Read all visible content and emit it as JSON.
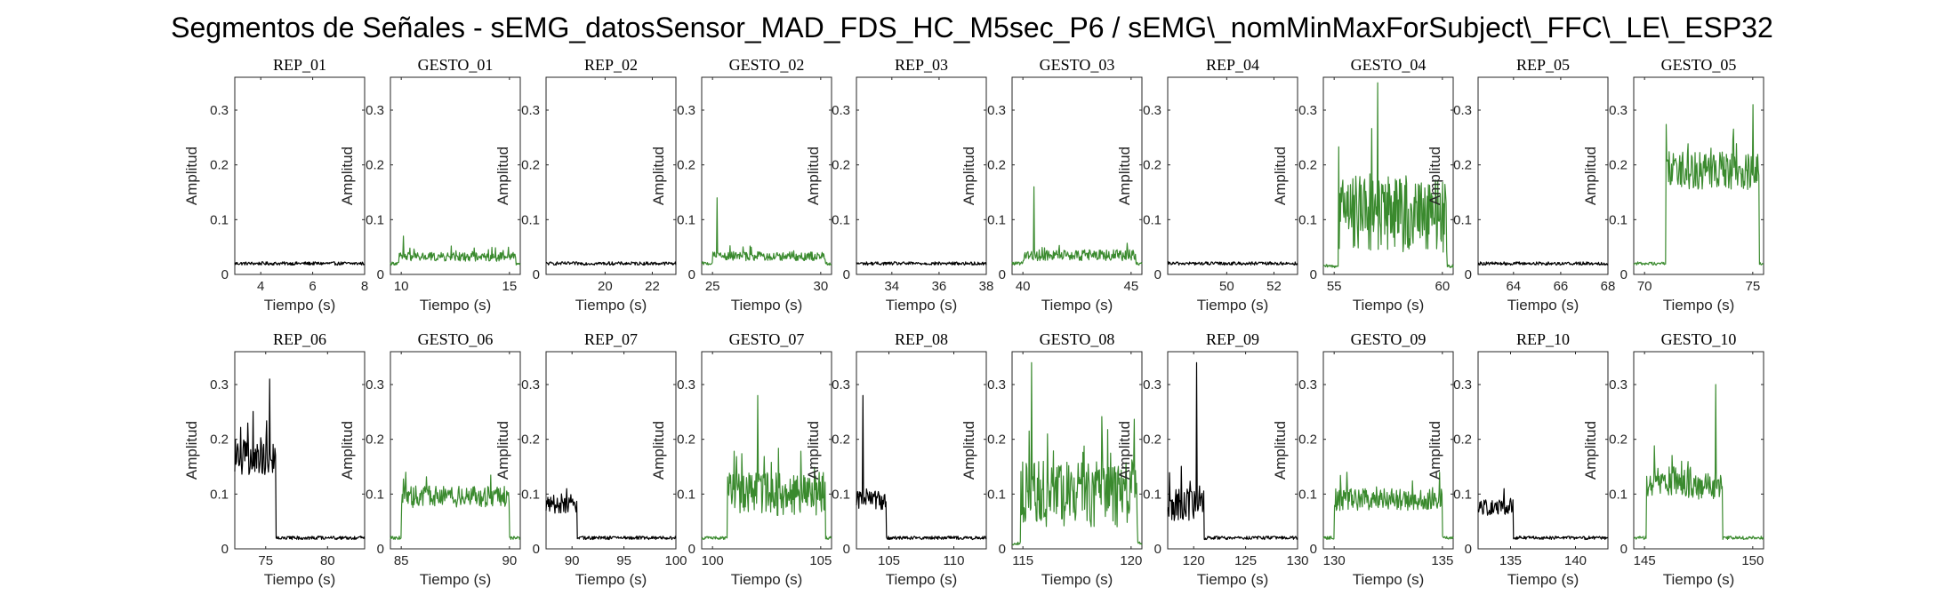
{
  "figure_title": "Segmentos de Señales - sEMG_datosSensor_MAD_FDS_HC_M5sec_P6 / sEMG\\_nomMinMaxForSubject\\_FFC\\_LE\\_ESP32",
  "colors": {
    "rep": "#000000",
    "gesto": "#3a8a2e"
  },
  "chart_data": [
    {
      "type": "line",
      "title": "REP_01",
      "xlabel": "Tiempo (s)",
      "ylabel": "Amplitud",
      "xlim": [
        3,
        8
      ],
      "ylim": [
        0,
        0.36
      ],
      "xticks": [
        4,
        6,
        8
      ],
      "yticks": [
        0,
        0.1,
        0.2,
        0.3
      ],
      "color": "rep",
      "x": [
        3,
        8
      ],
      "y": [
        0.02,
        0.02
      ],
      "pattern": {
        "kind": "noise",
        "base": 0.02,
        "noise": 0.003
      }
    },
    {
      "type": "line",
      "title": "GESTO_01",
      "xlabel": "Tiempo (s)",
      "ylabel": "Amplitud",
      "xlim": [
        9.5,
        15.5
      ],
      "ylim": [
        0,
        0.36
      ],
      "xticks": [
        10,
        15
      ],
      "yticks": [
        0,
        0.1,
        0.2,
        0.3
      ],
      "color": "gesto",
      "x": [
        9.5,
        15.5
      ],
      "y": [
        0.02,
        0.03
      ],
      "pattern": {
        "kind": "burst",
        "base": 0.02,
        "level": 0.032,
        "noise": 0.008,
        "start": 9.9,
        "end": 15.3,
        "spike": [
          10.1,
          0.07
        ]
      }
    },
    {
      "type": "line",
      "title": "REP_02",
      "xlabel": "Tiempo (s)",
      "ylabel": "Amplitud",
      "xlim": [
        17.5,
        23
      ],
      "ylim": [
        0,
        0.36
      ],
      "xticks": [
        20,
        22
      ],
      "yticks": [
        0,
        0.1,
        0.2,
        0.3
      ],
      "color": "rep",
      "x": [
        17.5,
        23
      ],
      "y": [
        0.02,
        0.02
      ],
      "pattern": {
        "kind": "noise",
        "base": 0.02,
        "noise": 0.003
      }
    },
    {
      "type": "line",
      "title": "GESTO_02",
      "xlabel": "Tiempo (s)",
      "ylabel": "Amplitud",
      "xlim": [
        24.5,
        30.5
      ],
      "ylim": [
        0,
        0.36
      ],
      "xticks": [
        25,
        30
      ],
      "yticks": [
        0,
        0.1,
        0.2,
        0.3
      ],
      "color": "gesto",
      "x": [
        24.5,
        30.5
      ],
      "y": [
        0.02,
        0.03
      ],
      "pattern": {
        "kind": "burst",
        "base": 0.02,
        "level": 0.033,
        "noise": 0.008,
        "start": 25.0,
        "end": 30.2,
        "spike": [
          25.2,
          0.14
        ]
      }
    },
    {
      "type": "line",
      "title": "REP_03",
      "xlabel": "Tiempo (s)",
      "ylabel": "Amplitud",
      "xlim": [
        32.5,
        38
      ],
      "ylim": [
        0,
        0.36
      ],
      "xticks": [
        34,
        36,
        38
      ],
      "yticks": [
        0,
        0.1,
        0.2,
        0.3
      ],
      "color": "rep",
      "x": [
        32.5,
        38
      ],
      "y": [
        0.02,
        0.02
      ],
      "pattern": {
        "kind": "noise",
        "base": 0.02,
        "noise": 0.003
      }
    },
    {
      "type": "line",
      "title": "GESTO_03",
      "xlabel": "Tiempo (s)",
      "ylabel": "Amplitud",
      "xlim": [
        39.5,
        45.5
      ],
      "ylim": [
        0,
        0.36
      ],
      "xticks": [
        40,
        45
      ],
      "yticks": [
        0,
        0.1,
        0.2,
        0.3
      ],
      "color": "gesto",
      "x": [
        39.5,
        45.5
      ],
      "y": [
        0.02,
        0.03
      ],
      "pattern": {
        "kind": "burst",
        "base": 0.02,
        "level": 0.035,
        "noise": 0.01,
        "start": 40.0,
        "end": 45.2,
        "spike": [
          40.5,
          0.16
        ]
      }
    },
    {
      "type": "line",
      "title": "REP_04",
      "xlabel": "Tiempo (s)",
      "ylabel": "Amplitud",
      "xlim": [
        47.5,
        53
      ],
      "ylim": [
        0,
        0.36
      ],
      "xticks": [
        50,
        52
      ],
      "yticks": [
        0,
        0.1,
        0.2,
        0.3
      ],
      "color": "rep",
      "x": [
        47.5,
        53
      ],
      "y": [
        0.02,
        0.02
      ],
      "pattern": {
        "kind": "noise",
        "base": 0.02,
        "noise": 0.003
      }
    },
    {
      "type": "line",
      "title": "GESTO_04",
      "xlabel": "Tiempo (s)",
      "ylabel": "Amplitud",
      "xlim": [
        54.5,
        60.5
      ],
      "ylim": [
        0,
        0.36
      ],
      "xticks": [
        55,
        60
      ],
      "yticks": [
        0,
        0.1,
        0.2,
        0.3
      ],
      "color": "gesto",
      "x": [
        54.5,
        60.5
      ],
      "y": [
        0.02,
        0.1
      ],
      "pattern": {
        "kind": "burst",
        "base": 0.015,
        "level": 0.11,
        "noise": 0.07,
        "start": 55.2,
        "end": 60.2,
        "spike": [
          57.0,
          0.35
        ]
      }
    },
    {
      "type": "line",
      "title": "REP_05",
      "xlabel": "Tiempo (s)",
      "ylabel": "Amplitud",
      "xlim": [
        62.5,
        68
      ],
      "ylim": [
        0,
        0.36
      ],
      "xticks": [
        64,
        66,
        68
      ],
      "yticks": [
        0,
        0.1,
        0.2,
        0.3
      ],
      "color": "rep",
      "x": [
        62.5,
        68
      ],
      "y": [
        0.02,
        0.02
      ],
      "pattern": {
        "kind": "noise",
        "base": 0.02,
        "noise": 0.003
      }
    },
    {
      "type": "line",
      "title": "GESTO_05",
      "xlabel": "Tiempo (s)",
      "ylabel": "Amplitud",
      "xlim": [
        69.5,
        75.5
      ],
      "ylim": [
        0,
        0.36
      ],
      "xticks": [
        70,
        75
      ],
      "yticks": [
        0,
        0.1,
        0.2,
        0.3
      ],
      "color": "gesto",
      "x": [
        69.5,
        75.5
      ],
      "y": [
        0.02,
        0.18
      ],
      "pattern": {
        "kind": "burst",
        "base": 0.02,
        "level": 0.19,
        "noise": 0.035,
        "start": 71.0,
        "end": 75.3,
        "spike": [
          75.0,
          0.31
        ]
      }
    },
    {
      "type": "line",
      "title": "REP_06",
      "xlabel": "Tiempo (s)",
      "ylabel": "Amplitud",
      "xlim": [
        72.5,
        83
      ],
      "ylim": [
        0,
        0.36
      ],
      "xticks": [
        75,
        80
      ],
      "yticks": [
        0,
        0.1,
        0.2,
        0.3
      ],
      "color": "rep",
      "x": [
        72.5,
        83
      ],
      "y": [
        0.18,
        0.02
      ],
      "pattern": {
        "kind": "rest_burst",
        "base": 0.02,
        "level": 0.17,
        "noise": 0.035,
        "start": 72.5,
        "end": 75.8,
        "spike": [
          75.3,
          0.31
        ]
      }
    },
    {
      "type": "line",
      "title": "GESTO_06",
      "xlabel": "Tiempo (s)",
      "ylabel": "Amplitud",
      "xlim": [
        84.5,
        90.5
      ],
      "ylim": [
        0,
        0.36
      ],
      "xticks": [
        85,
        90
      ],
      "yticks": [
        0,
        0.1,
        0.2,
        0.3
      ],
      "color": "gesto",
      "x": [
        84.5,
        90.5
      ],
      "y": [
        0.02,
        0.09
      ],
      "pattern": {
        "kind": "burst",
        "base": 0.02,
        "level": 0.095,
        "noise": 0.02,
        "start": 85.0,
        "end": 90.0,
        "spike": [
          85.2,
          0.14
        ]
      }
    },
    {
      "type": "line",
      "title": "REP_07",
      "xlabel": "Tiempo (s)",
      "ylabel": "Amplitud",
      "xlim": [
        87.5,
        100
      ],
      "ylim": [
        0,
        0.36
      ],
      "xticks": [
        90,
        95,
        100
      ],
      "yticks": [
        0,
        0.1,
        0.2,
        0.3
      ],
      "color": "rep",
      "x": [
        87.5,
        100
      ],
      "y": [
        0.08,
        0.02
      ],
      "pattern": {
        "kind": "rest_burst",
        "base": 0.02,
        "level": 0.08,
        "noise": 0.015,
        "start": 87.5,
        "end": 90.5,
        "spike": [
          89.5,
          0.11
        ]
      }
    },
    {
      "type": "line",
      "title": "GESTO_07",
      "xlabel": "Tiempo (s)",
      "ylabel": "Amplitud",
      "xlim": [
        99.5,
        105.5
      ],
      "ylim": [
        0,
        0.36
      ],
      "xticks": [
        100,
        105
      ],
      "yticks": [
        0,
        0.1,
        0.2,
        0.3
      ],
      "color": "gesto",
      "x": [
        99.5,
        105.5
      ],
      "y": [
        0.02,
        0.1
      ],
      "pattern": {
        "kind": "burst",
        "base": 0.02,
        "level": 0.1,
        "noise": 0.04,
        "start": 100.7,
        "end": 105.2,
        "spike": [
          102.1,
          0.28
        ]
      }
    },
    {
      "type": "line",
      "title": "REP_08",
      "xlabel": "Tiempo (s)",
      "ylabel": "Amplitud",
      "xlim": [
        102.5,
        112.5
      ],
      "ylim": [
        0,
        0.36
      ],
      "xticks": [
        105,
        110
      ],
      "yticks": [
        0,
        0.1,
        0.2,
        0.3
      ],
      "color": "rep",
      "x": [
        102.5,
        112.5
      ],
      "y": [
        0.2,
        0.02
      ],
      "pattern": {
        "kind": "rest_burst",
        "base": 0.02,
        "level": 0.09,
        "noise": 0.02,
        "start": 102.5,
        "end": 104.8,
        "spike": [
          103.0,
          0.28
        ]
      }
    },
    {
      "type": "line",
      "title": "GESTO_08",
      "xlabel": "Tiempo (s)",
      "ylabel": "Amplitud",
      "xlim": [
        114.5,
        120.5
      ],
      "ylim": [
        0,
        0.36
      ],
      "xticks": [
        115,
        120
      ],
      "yticks": [
        0,
        0.1,
        0.2,
        0.3
      ],
      "color": "gesto",
      "x": [
        114.5,
        120.5
      ],
      "y": [
        0.02,
        0.1
      ],
      "pattern": {
        "kind": "burst",
        "base": 0.01,
        "level": 0.1,
        "noise": 0.06,
        "start": 114.9,
        "end": 120.3,
        "spike": [
          115.4,
          0.34
        ]
      }
    },
    {
      "type": "line",
      "title": "REP_09",
      "xlabel": "Tiempo (s)",
      "ylabel": "Amplitud",
      "xlim": [
        117.5,
        130
      ],
      "ylim": [
        0,
        0.36
      ],
      "xticks": [
        120,
        125,
        130
      ],
      "yticks": [
        0,
        0.1,
        0.2,
        0.3
      ],
      "color": "rep",
      "x": [
        117.5,
        130
      ],
      "y": [
        0.1,
        0.02
      ],
      "pattern": {
        "kind": "rest_burst",
        "base": 0.02,
        "level": 0.08,
        "noise": 0.03,
        "start": 117.5,
        "end": 121.0,
        "spike": [
          120.3,
          0.34
        ]
      }
    },
    {
      "type": "line",
      "title": "GESTO_09",
      "xlabel": "Tiempo (s)",
      "ylabel": "Amplitud",
      "xlim": [
        129.5,
        135.5
      ],
      "ylim": [
        0,
        0.36
      ],
      "xticks": [
        130,
        135
      ],
      "yticks": [
        0,
        0.1,
        0.2,
        0.3
      ],
      "color": "gesto",
      "x": [
        129.5,
        135.5
      ],
      "y": [
        0.02,
        0.09
      ],
      "pattern": {
        "kind": "burst",
        "base": 0.02,
        "level": 0.09,
        "noise": 0.02,
        "start": 130.0,
        "end": 135.0,
        "spike": [
          130.6,
          0.14
        ]
      }
    },
    {
      "type": "line",
      "title": "REP_10",
      "xlabel": "Tiempo (s)",
      "ylabel": "Amplitud",
      "xlim": [
        132.5,
        142.5
      ],
      "ylim": [
        0,
        0.36
      ],
      "xticks": [
        135,
        140
      ],
      "yticks": [
        0,
        0.1,
        0.2,
        0.3
      ],
      "color": "rep",
      "x": [
        132.5,
        142.5
      ],
      "y": [
        0.08,
        0.02
      ],
      "pattern": {
        "kind": "rest_burst",
        "base": 0.02,
        "level": 0.075,
        "noise": 0.015,
        "start": 132.5,
        "end": 135.2,
        "spike": [
          134.5,
          0.11
        ]
      }
    },
    {
      "type": "line",
      "title": "GESTO_10",
      "xlabel": "Tiempo (s)",
      "ylabel": "Amplitud",
      "xlim": [
        144.5,
        150.5
      ],
      "ylim": [
        0,
        0.36
      ],
      "xticks": [
        145,
        150
      ],
      "yticks": [
        0,
        0.1,
        0.2,
        0.3
      ],
      "color": "gesto",
      "x": [
        144.5,
        150.5
      ],
      "y": [
        0.02,
        0.15
      ],
      "pattern": {
        "kind": "burst",
        "base": 0.02,
        "level": 0.12,
        "noise": 0.03,
        "start": 145.1,
        "end": 148.6,
        "spike": [
          148.3,
          0.3
        ]
      }
    }
  ]
}
